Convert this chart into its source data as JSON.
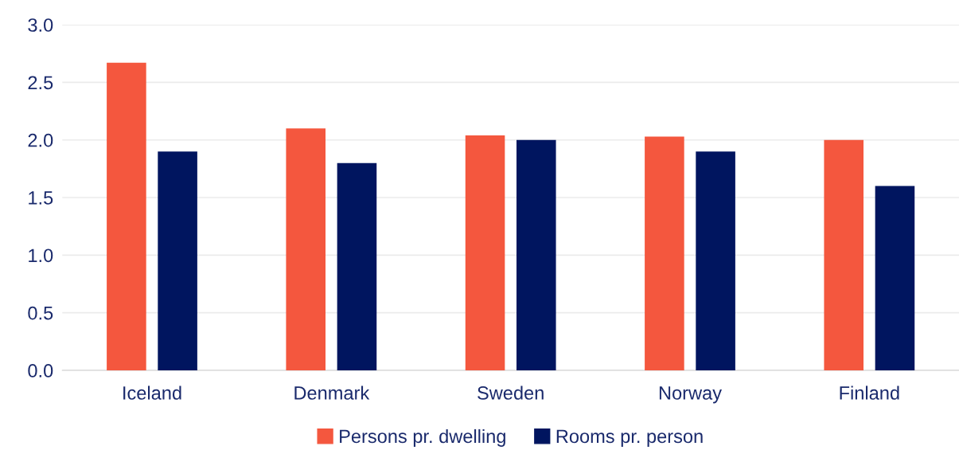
{
  "chart_data": {
    "type": "bar",
    "categories": [
      "Iceland",
      "Denmark",
      "Sweden",
      "Norway",
      "Finland"
    ],
    "series": [
      {
        "name": "Persons pr. dwelling",
        "color": "#f4573e",
        "values": [
          2.67,
          2.1,
          2.04,
          2.03,
          2.0
        ]
      },
      {
        "name": "Rooms pr. person",
        "color": "#00155f",
        "values": [
          1.9,
          1.8,
          2.0,
          1.9,
          1.6
        ]
      }
    ],
    "ylim": [
      0,
      3
    ],
    "yticks": [
      {
        "value": 0,
        "label": "0.0"
      },
      {
        "value": 0.5,
        "label": "0.5"
      },
      {
        "value": 1,
        "label": "1.0"
      },
      {
        "value": 1.5,
        "label": "1.5"
      },
      {
        "value": 2,
        "label": "2.0"
      },
      {
        "value": 2.5,
        "label": "2.5"
      },
      {
        "value": 3,
        "label": "3.0"
      }
    ],
    "grid": "y",
    "legend": "bottom"
  }
}
